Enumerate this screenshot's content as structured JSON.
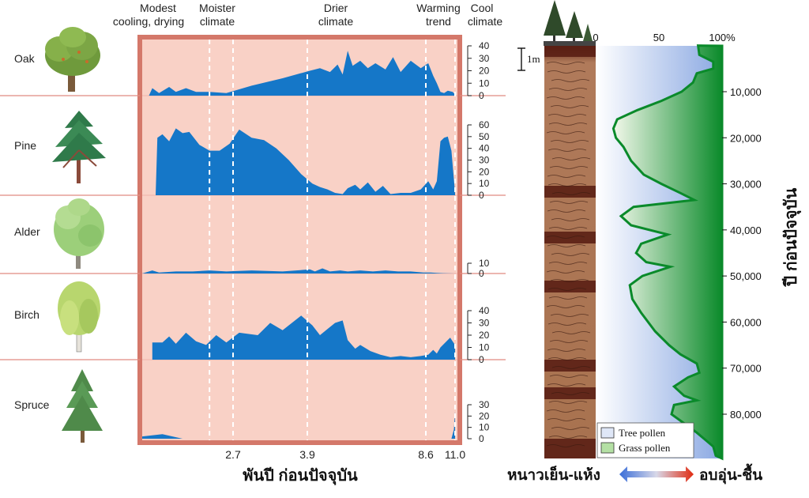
{
  "left_chart": {
    "period_labels": [
      {
        "line1": "Modest",
        "line2": "cooling, drying"
      },
      {
        "line1": "Moister",
        "line2": "climate"
      },
      {
        "line1": "Drier",
        "line2": "climate"
      },
      {
        "line1": "Warming",
        "line2": "trend"
      },
      {
        "line1": "Cool",
        "line2": "climate"
      }
    ],
    "x_tick_labels": [
      "2.7",
      "3.9",
      "8.6",
      "11.0"
    ],
    "x_axis_label": "พันปี ก่อนปัจจุบัน"
  },
  "right_chart": {
    "scale_bar_label": "1m",
    "top_axis_ticks": [
      "0",
      "50",
      "100%"
    ],
    "age_ticks": [
      "10,000",
      "20,000",
      "30,000",
      "40,000",
      "50,000",
      "60,000",
      "70,000",
      "80,000"
    ],
    "y_axis_label": "ปี ก่อนปัจจุบัน",
    "legend": {
      "tree": "Tree pollen",
      "grass": "Grass pollen"
    },
    "gradient_left_label": "หนาวเย็น-แห้ง",
    "gradient_right_label": "อบอุ่น-ชื้น"
  },
  "colors": {
    "panel_bg": "#f9d1c6",
    "panel_border": "#d4786a",
    "fill": "#1577c8",
    "grass_green": "#0a8a2a",
    "tree_blue": "#8aa8e2"
  },
  "chart_data": [
    {
      "type": "area",
      "title": "",
      "xlabel": "พันปี ก่อนปัจจุบัน",
      "x_ticks": [
        2.7,
        3.9,
        8.6,
        11.0
      ],
      "period_boundaries": [
        2.0,
        2.7,
        3.9,
        8.6,
        11.0
      ],
      "series": [
        {
          "name": "Oak",
          "ylim": [
            0,
            40
          ],
          "y_ticks": [
            0,
            10,
            20,
            30,
            40
          ],
          "points": [
            [
              0.2,
              0
            ],
            [
              0.3,
              6
            ],
            [
              0.5,
              2
            ],
            [
              0.8,
              7
            ],
            [
              1.0,
              3
            ],
            [
              1.3,
              6
            ],
            [
              1.6,
              3
            ],
            [
              2.0,
              3
            ],
            [
              2.5,
              2
            ],
            [
              3.0,
              8
            ],
            [
              3.5,
              14
            ],
            [
              4.0,
              20
            ],
            [
              4.4,
              22
            ],
            [
              4.8,
              19
            ],
            [
              5.1,
              25
            ],
            [
              5.3,
              17
            ],
            [
              5.5,
              36
            ],
            [
              5.7,
              24
            ],
            [
              6.0,
              28
            ],
            [
              6.3,
              22
            ],
            [
              6.6,
              26
            ],
            [
              7.0,
              21
            ],
            [
              7.3,
              31
            ],
            [
              7.6,
              19
            ],
            [
              8.0,
              28
            ],
            [
              8.4,
              22
            ],
            [
              8.8,
              26
            ],
            [
              9.2,
              16
            ],
            [
              9.5,
              10
            ],
            [
              9.8,
              3
            ],
            [
              10.1,
              2
            ],
            [
              10.4,
              4
            ],
            [
              10.8,
              3
            ],
            [
              11.0,
              1
            ]
          ]
        },
        {
          "name": "Pine",
          "ylim": [
            0,
            60
          ],
          "y_ticks": [
            0,
            10,
            20,
            30,
            40,
            50,
            60
          ],
          "points": [
            [
              0.4,
              0
            ],
            [
              0.45,
              49
            ],
            [
              0.6,
              52
            ],
            [
              0.8,
              46
            ],
            [
              1.0,
              57
            ],
            [
              1.2,
              53
            ],
            [
              1.4,
              54
            ],
            [
              1.7,
              43
            ],
            [
              2.0,
              38
            ],
            [
              2.3,
              38
            ],
            [
              2.6,
              44
            ],
            [
              2.8,
              56
            ],
            [
              3.0,
              49
            ],
            [
              3.2,
              47
            ],
            [
              3.4,
              40
            ],
            [
              3.6,
              30
            ],
            [
              3.8,
              18
            ],
            [
              4.1,
              10
            ],
            [
              4.4,
              7
            ],
            [
              4.7,
              5
            ],
            [
              5.0,
              2
            ],
            [
              5.3,
              1
            ],
            [
              5.5,
              6
            ],
            [
              5.8,
              9
            ],
            [
              6.0,
              5
            ],
            [
              6.3,
              11
            ],
            [
              6.6,
              3
            ],
            [
              6.9,
              8
            ],
            [
              7.2,
              1
            ],
            [
              7.6,
              2
            ],
            [
              8.0,
              2
            ],
            [
              8.4,
              5
            ],
            [
              8.8,
              12
            ],
            [
              9.2,
              5
            ],
            [
              9.5,
              12
            ],
            [
              9.8,
              46
            ],
            [
              10.1,
              49
            ],
            [
              10.4,
              50
            ],
            [
              10.7,
              38
            ],
            [
              11.0,
              2
            ]
          ]
        },
        {
          "name": "Alder",
          "ylim": [
            0,
            10
          ],
          "y_ticks": [
            0,
            10
          ],
          "points": [
            [
              0.0,
              0
            ],
            [
              0.3,
              3
            ],
            [
              0.5,
              1
            ],
            [
              1.0,
              2
            ],
            [
              1.5,
              2
            ],
            [
              2.0,
              3
            ],
            [
              2.5,
              2
            ],
            [
              3.0,
              3
            ],
            [
              3.5,
              2
            ],
            [
              4.0,
              4
            ],
            [
              4.2,
              2
            ],
            [
              4.5,
              5
            ],
            [
              4.8,
              2
            ],
            [
              5.2,
              3
            ],
            [
              5.5,
              2
            ],
            [
              6.0,
              3
            ],
            [
              6.5,
              2
            ],
            [
              7.0,
              3
            ],
            [
              7.5,
              2
            ],
            [
              8.0,
              2
            ],
            [
              8.5,
              1
            ],
            [
              9.0,
              1
            ],
            [
              9.5,
              0.6
            ],
            [
              10.0,
              0.3
            ],
            [
              11.0,
              0
            ]
          ]
        },
        {
          "name": "Birch",
          "ylim": [
            0,
            40
          ],
          "y_ticks": [
            0,
            10,
            20,
            30,
            40
          ],
          "points": [
            [
              0.3,
              0
            ],
            [
              0.3,
              14
            ],
            [
              0.6,
              14
            ],
            [
              0.8,
              19
            ],
            [
              1.0,
              13
            ],
            [
              1.3,
              22
            ],
            [
              1.6,
              15
            ],
            [
              1.9,
              12
            ],
            [
              2.2,
              20
            ],
            [
              2.5,
              14
            ],
            [
              2.8,
              22
            ],
            [
              3.1,
              20
            ],
            [
              3.3,
              30
            ],
            [
              3.5,
              24
            ],
            [
              3.8,
              36
            ],
            [
              4.1,
              28
            ],
            [
              4.4,
              20
            ],
            [
              4.7,
              25
            ],
            [
              5.0,
              30
            ],
            [
              5.3,
              32
            ],
            [
              5.5,
              16
            ],
            [
              5.8,
              9
            ],
            [
              6.0,
              12
            ],
            [
              6.4,
              7
            ],
            [
              6.8,
              4
            ],
            [
              7.2,
              2
            ],
            [
              7.6,
              3
            ],
            [
              8.0,
              2
            ],
            [
              8.4,
              3
            ],
            [
              8.8,
              4
            ],
            [
              9.2,
              8
            ],
            [
              9.5,
              5
            ],
            [
              9.8,
              10
            ],
            [
              10.2,
              14
            ],
            [
              10.6,
              18
            ],
            [
              11.0,
              12
            ]
          ]
        },
        {
          "name": "Spruce",
          "ylim": [
            0,
            30
          ],
          "y_ticks": [
            0,
            10,
            20,
            30
          ],
          "points": [
            [
              0.0,
              0
            ],
            [
              0.0,
              2
            ],
            [
              0.6,
              4
            ],
            [
              1.2,
              0
            ],
            [
              10.7,
              0
            ],
            [
              10.9,
              8
            ],
            [
              11.0,
              24
            ]
          ]
        }
      ]
    },
    {
      "type": "area",
      "title": "",
      "xlabel": "",
      "ylabel": "ปี ก่อนปัจจุบัน",
      "x_ticks": [
        0,
        50,
        100
      ],
      "y_ticks": [
        10000,
        20000,
        30000,
        40000,
        50000,
        60000,
        70000,
        80000
      ],
      "ylim": [
        0,
        89000
      ],
      "series": [
        {
          "name": "Grass pollen",
          "note": "",
          "points": [
            [
              0,
              81
            ],
            [
              2000,
              82
            ],
            [
              3500,
              93
            ],
            [
              5000,
              93
            ],
            [
              6000,
              80
            ],
            [
              8000,
              77
            ],
            [
              10000,
              68
            ],
            [
              12000,
              52
            ],
            [
              14000,
              33
            ],
            [
              16000,
              17
            ],
            [
              18000,
              14
            ],
            [
              20000,
              16
            ],
            [
              22000,
              22
            ],
            [
              25000,
              28
            ],
            [
              28000,
              38
            ],
            [
              30000,
              52
            ],
            [
              32000,
              67
            ],
            [
              33500,
              78
            ],
            [
              35000,
              30
            ],
            [
              37000,
              20
            ],
            [
              39000,
              28
            ],
            [
              41000,
              57
            ],
            [
              43000,
              36
            ],
            [
              45000,
              32
            ],
            [
              47000,
              40
            ],
            [
              48000,
              59
            ],
            [
              50000,
              37
            ],
            [
              52000,
              27
            ],
            [
              55000,
              29
            ],
            [
              58000,
              36
            ],
            [
              62000,
              47
            ],
            [
              65000,
              58
            ],
            [
              67000,
              67
            ],
            [
              69000,
              80
            ],
            [
              71000,
              82
            ],
            [
              72000,
              73
            ],
            [
              74000,
              62
            ],
            [
              76000,
              70
            ],
            [
              77000,
              80
            ],
            [
              78000,
              62
            ],
            [
              80000,
              60
            ],
            [
              82000,
              70
            ],
            [
              84000,
              80
            ],
            [
              87000,
              93
            ],
            [
              89000,
              95
            ]
          ]
        }
      ]
    }
  ]
}
